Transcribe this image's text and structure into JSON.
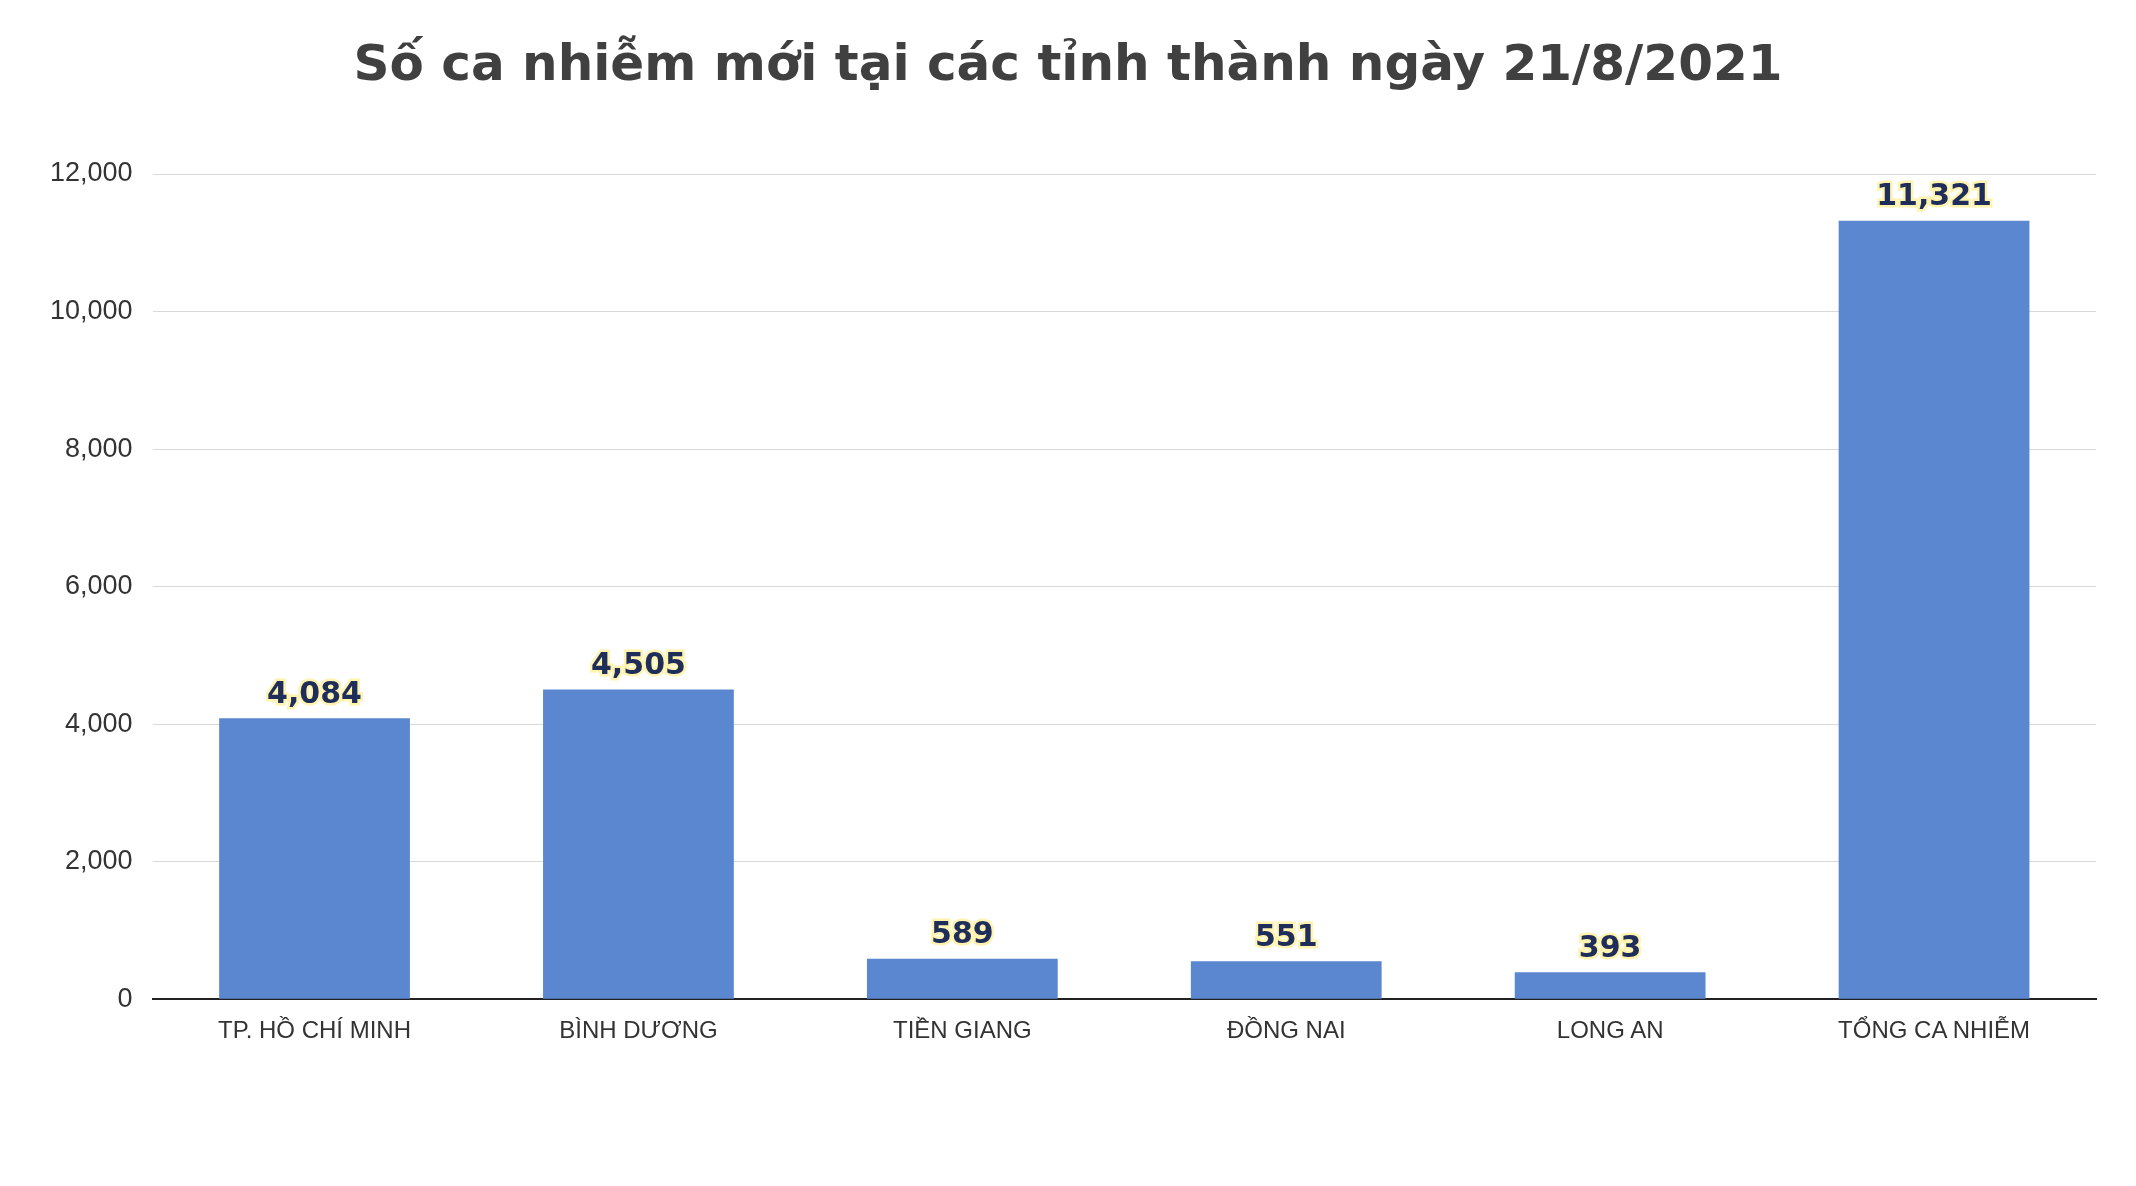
{
  "chart_data": {
    "type": "bar",
    "title": "Số ca nhiễm mới tại các tỉnh thành ngày 21/8/2021",
    "categories": [
      "TP. HỒ CHÍ MINH",
      "BÌNH DƯƠNG",
      "TIỀN GIANG",
      "ĐỒNG NAI",
      "LONG AN",
      "TỔNG CA NHIỄM"
    ],
    "values": [
      4084,
      4505,
      589,
      551,
      393,
      11321
    ],
    "color": "#5b86d0",
    "ylim": [
      0,
      12000
    ],
    "yticks": [
      0,
      {
        "value": 2000,
        "label": "2,000"
      },
      {
        "value": 4000,
        "label": "4,000"
      },
      {
        "value": 6000,
        "label": "6,000"
      },
      {
        "value": 8000,
        "label": "8,000"
      },
      {
        "value": 10000,
        "label": "10,000"
      },
      {
        "value": 12000,
        "label": "12,000"
      }
    ],
    "grid": "y",
    "value_labels": [
      "4,084",
      "4,505",
      "589",
      "551",
      "393",
      "11,321"
    ]
  }
}
